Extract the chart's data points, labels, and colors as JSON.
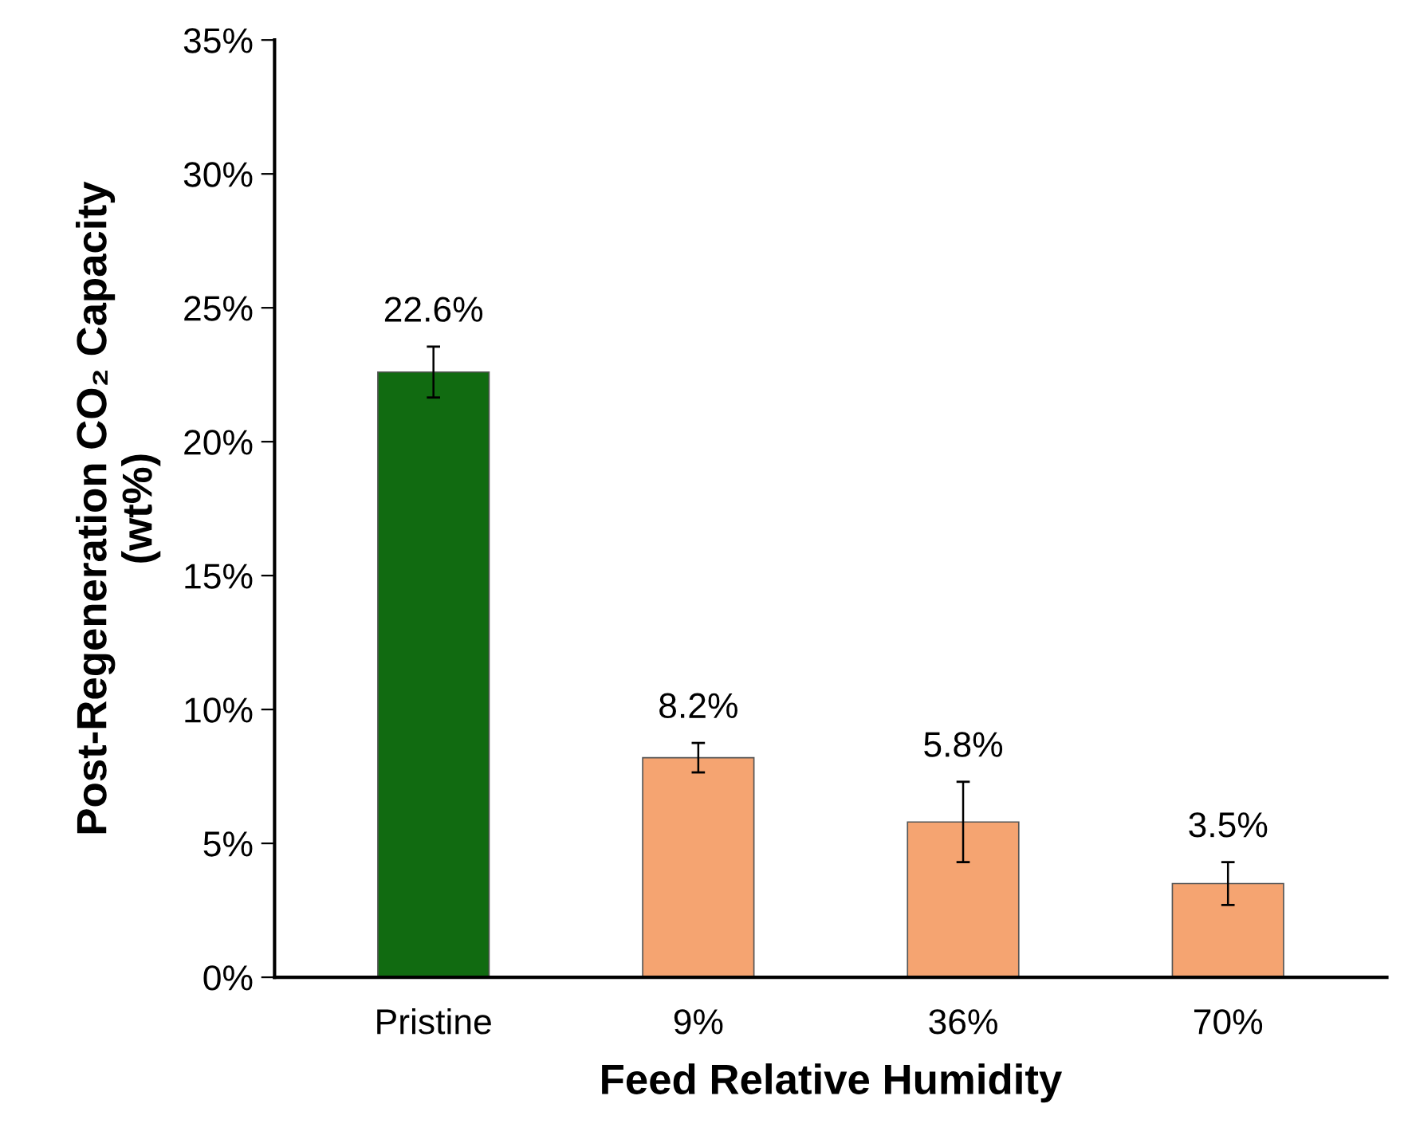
{
  "chart_data": {
    "type": "bar",
    "xlabel": "Feed Relative Humidity",
    "ylabel": "Post-Regeneration CO₂ Capacity\n(wt%)",
    "categories": [
      "Pristine",
      "9%",
      "36%",
      "70%"
    ],
    "values": [
      22.6,
      8.2,
      5.8,
      3.5
    ],
    "colors": [
      "#116b11",
      "#f5a471",
      "#f5a471",
      "#f5a471"
    ],
    "errors": [
      0.95,
      0.55,
      1.5,
      0.8
    ],
    "value_labels": [
      "22.6%",
      "8.2%",
      "5.8%",
      "3.5%"
    ],
    "ylim": [
      0,
      35
    ],
    "yticks": [
      {
        "value": 0,
        "label": "0%"
      },
      {
        "value": 5,
        "label": "5%"
      },
      {
        "value": 10,
        "label": "10%"
      },
      {
        "value": 15,
        "label": "15%"
      },
      {
        "value": 20,
        "label": "20%"
      },
      {
        "value": 25,
        "label": "25%"
      },
      {
        "value": 30,
        "label": "30%"
      },
      {
        "value": 35,
        "label": "35%"
      }
    ],
    "grid": false
  }
}
